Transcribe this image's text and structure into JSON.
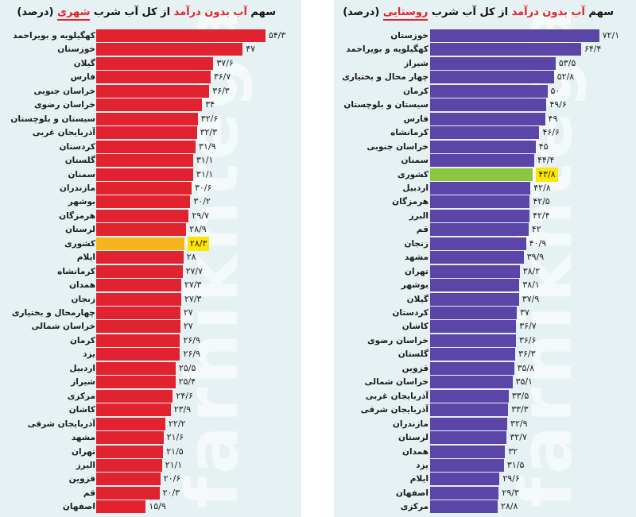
{
  "chart_data": [
    {
      "type": "bar",
      "orientation": "horizontal",
      "title": "سهم آب بدون درآمد از کل آب شرب شهری (درصد)",
      "title_parts": {
        "pre": "سهم ",
        "hl1": "آب بدون درآمد",
        "mid": " از کل آب شرب ",
        "hl2": "شهری",
        "post": " (درصد)"
      },
      "unit": "درصد",
      "bar_color": "#e0232f",
      "highlight_color": "#f7b51d",
      "highlight_category": "کشوری",
      "categories": [
        "کهگیلویه و بویراحمد",
        "خوزستان",
        "گیلان",
        "فارس",
        "خراسان جنوبی",
        "خراسان رضوی",
        "سیستان و بلوچستان",
        "آذربایجان غربی",
        "کردستان",
        "گلستان",
        "سمنان",
        "مازندران",
        "بوشهر",
        "هرمزگان",
        "لرستان",
        "کشوری",
        "ایلام",
        "کرمانشاه",
        "همدان",
        "زنجان",
        "چهارمحال و بختیاری",
        "خراسان شمالی",
        "کرمان",
        "یزد",
        "اردبیل",
        "شیراز",
        "مرکزی",
        "کاشان",
        "آذربایجان شرقی",
        "مشهد",
        "تهران",
        "البرز",
        "قزوین",
        "قم",
        "اصفهان"
      ],
      "values": [
        54.3,
        47,
        37.6,
        36.7,
        36.3,
        34,
        32.6,
        32.3,
        31.9,
        31.1,
        31.1,
        30.6,
        30.2,
        29.7,
        28.9,
        28.3,
        28,
        27.7,
        27.3,
        27.3,
        27,
        27,
        26.9,
        26.9,
        25.5,
        25.4,
        24.6,
        23.9,
        22.2,
        21.6,
        21.5,
        21.1,
        20.6,
        20.3,
        15.9
      ],
      "value_labels": [
        "۵۴/۳",
        "۴۷",
        "۳۷/۶",
        "۳۶/۷",
        "۳۶/۳",
        "۳۴",
        "۳۲/۶",
        "۳۲/۳",
        "۳۱/۹",
        "۳۱/۱",
        "۳۱/۱",
        "۳۰/۶",
        "۳۰/۲",
        "۲۹/۷",
        "۲۸/۹",
        "۲۸/۳",
        "۲۸",
        "۲۷/۷",
        "۲۷/۳",
        "۲۷/۳",
        "۲۷",
        "۲۷",
        "۲۶/۹",
        "۲۶/۹",
        "۲۵/۵",
        "۲۵/۴",
        "۲۴/۶",
        "۲۳/۹",
        "۲۲/۲",
        "۲۱/۶",
        "۲۱/۵",
        "۲۱/۱",
        "۲۰/۶",
        "۲۰/۳",
        "۱۵/۹"
      ],
      "xlabel": "",
      "ylabel": "",
      "grid": false
    },
    {
      "type": "bar",
      "orientation": "horizontal",
      "title": "سهم آب بدون درآمد از کل آب شرب روستایی (درصد)",
      "title_parts": {
        "pre": "سهم ",
        "hl1": "آب بدون درآمد",
        "mid": " از کل آب شرب ",
        "hl2": "روستایی",
        "post": " (درصد)"
      },
      "unit": "درصد",
      "bar_color": "#5b45a8",
      "highlight_color": "#8cc63f",
      "highlight_category": "کشوری",
      "categories": [
        "خوزستان",
        "کهگیلویه و بویراحمد",
        "شیراز",
        "چهار محال و بختیاری",
        "کرمان",
        "سیستان و بلوچستان",
        "فارس",
        "کرمانشاه",
        "خراسان جنوبی",
        "سمنان",
        "کشوری",
        "اردبیل",
        "هرمزگان",
        "البرز",
        "قم",
        "زنجان",
        "مشهد",
        "تهران",
        "بوشهر",
        "گیلان",
        "کردستان",
        "کاشان",
        "خراسان رضوی",
        "گلستان",
        "قزوین",
        "خراسان شمالی",
        "آذربایجان غربی",
        "آذربایجان شرقی",
        "مازندران",
        "لرستان",
        "همدان",
        "یزد",
        "ایلام",
        "اصفهان",
        "مرکزی"
      ],
      "values": [
        72.1,
        64.4,
        53.5,
        52.8,
        50,
        49.6,
        49,
        46.6,
        45,
        44.4,
        43.8,
        42.8,
        42.5,
        42.4,
        42,
        40.9,
        39.9,
        38.2,
        38.1,
        37.9,
        37,
        36.7,
        36.6,
        36.3,
        35.8,
        35.1,
        33.5,
        33.3,
        32.9,
        32.7,
        32,
        31.5,
        29.6,
        29.3,
        28.8
      ],
      "value_labels": [
        "۷۲/۱",
        "۶۴/۴",
        "۵۳/۵",
        "۵۲/۸",
        "۵۰",
        "۴۹/۶",
        "۴۹",
        "۴۶/۶",
        "۴۵",
        "۴۴/۴",
        "۴۳/۸",
        "۴۲/۸",
        "۴۲/۵",
        "۴۲/۴",
        "۴۲",
        "۴۰/۹",
        "۳۹/۹",
        "۳۸/۲",
        "۳۸/۱",
        "۳۷/۹",
        "۳۷",
        "۳۶/۷",
        "۳۶/۶",
        "۳۶/۳",
        "۳۵/۸",
        "۳۵/۱",
        "۳۳/۵",
        "۳۳/۳",
        "۳۲/۹",
        "۳۲/۷",
        "۳۲",
        "۳۱/۵",
        "۲۹/۶",
        "۲۹/۳",
        "۲۸/۸"
      ],
      "xlabel": "",
      "ylabel": "",
      "grid": false
    }
  ],
  "watermark": "farhikhtegan"
}
